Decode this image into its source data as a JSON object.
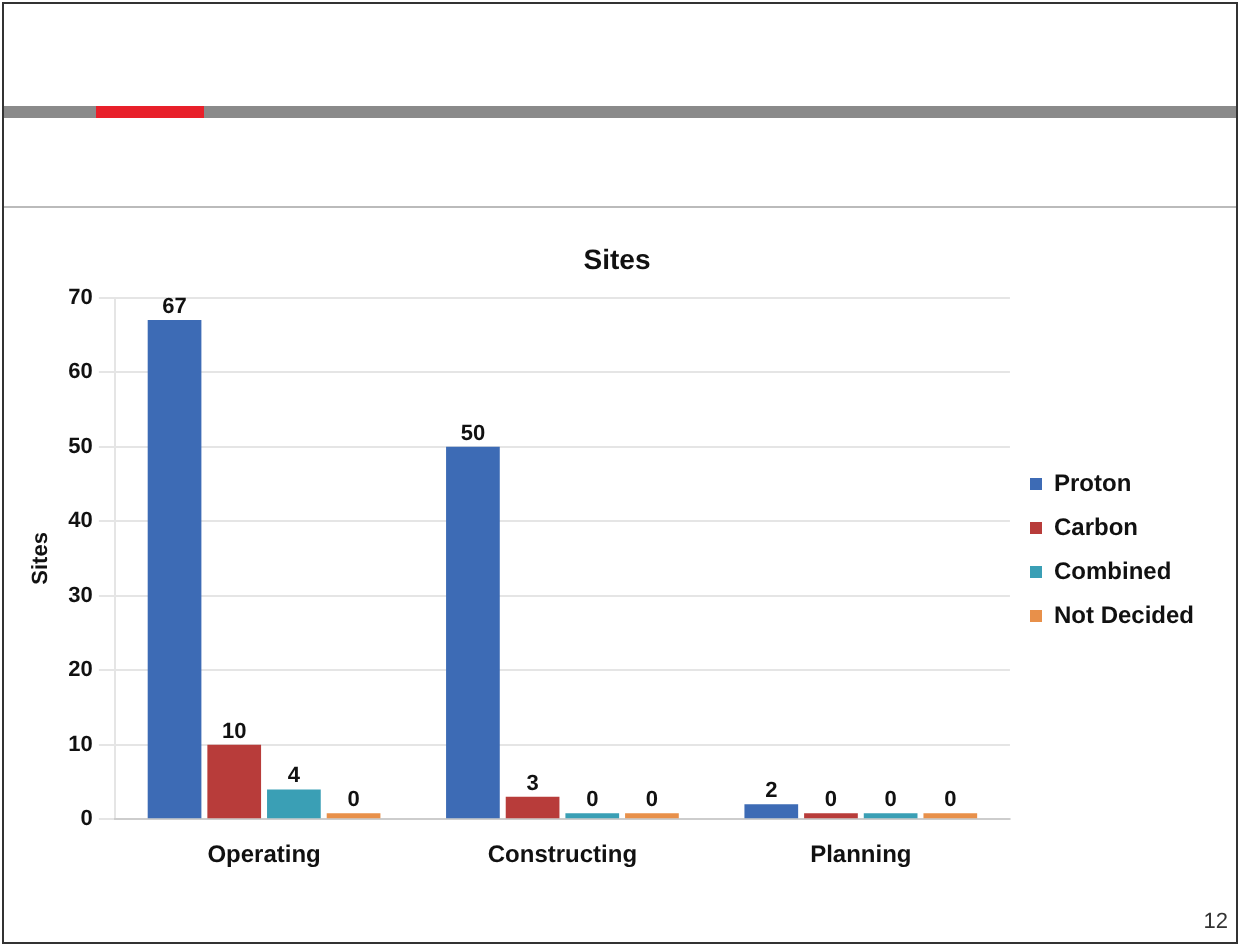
{
  "chart_data": {
    "type": "bar",
    "title": "Sites",
    "ylabel": "Sites",
    "categories": [
      "Operating",
      "Constructing",
      "Planning"
    ],
    "series": [
      {
        "name": "Proton",
        "color": "#3d6bb5",
        "values": [
          67,
          50,
          2
        ]
      },
      {
        "name": "Carbon",
        "color": "#b83c3a",
        "values": [
          10,
          3,
          0
        ]
      },
      {
        "name": "Combined",
        "color": "#3a9fb5",
        "values": [
          4,
          0,
          0
        ]
      },
      {
        "name": "Not Decided",
        "color": "#e8904a",
        "values": [
          0,
          0,
          0
        ]
      }
    ],
    "ylim": [
      0,
      70
    ],
    "yticks": [
      0,
      10,
      20,
      30,
      40,
      50,
      60,
      70
    ],
    "grid": "y",
    "legend": "right",
    "data_labels": true,
    "annotations": [
      "12"
    ]
  }
}
